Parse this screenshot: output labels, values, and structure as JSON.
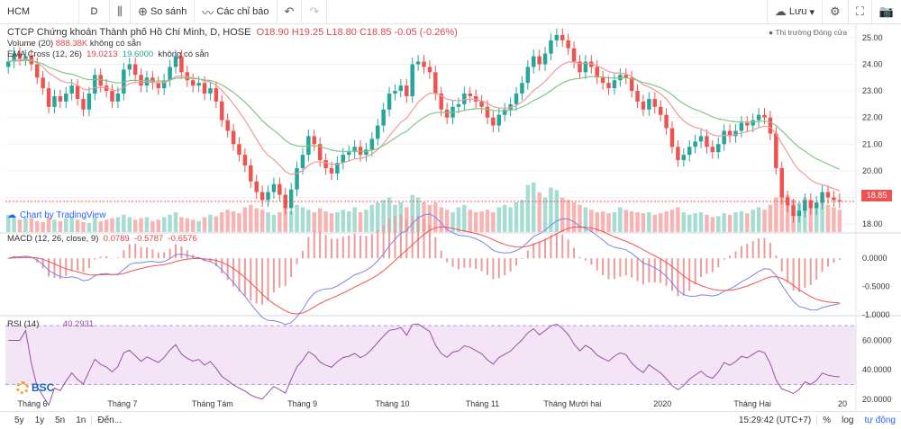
{
  "toolbar": {
    "symbol": "HCM",
    "interval": "D",
    "compare_label": "So sánh",
    "indicators_label": "Các chỉ báo",
    "save_label": "Lưu"
  },
  "chart_info": {
    "title": "CTCP Chứng khoán Thành phố Hồ Chí Minh, D, HOSE",
    "ohlc": "O18.90  H19.25  L18.80  C18.85  -0.05 (-0.26%)",
    "volume_label": "Volume (20)",
    "volume_value": "888.38K",
    "volume_na": "không có sẵn",
    "ema_label": "EMA Cross (12, 26)",
    "ema_v1": "19.0213",
    "ema_v2": "19.6000",
    "ema_na": "không có sẵn",
    "market_closed": "Thị trường Đóng cửa",
    "last_price": "18.85",
    "tv_badge": "Chart by TradingView",
    "macd_label": "MACD (12, 26, close, 9)",
    "macd_v1": "0.0789",
    "macd_v2": "-0.5787",
    "macd_v3": "-0.6576",
    "rsi_label": "RSI (14)",
    "rsi_value": "40.2931",
    "logo_text": "BSC"
  },
  "bottombar": {
    "ranges": [
      "5y",
      "1y",
      "5n",
      "1n",
      "Đến..."
    ],
    "time": "15:29:42 (UTC+7)",
    "percent": "%",
    "log": "log",
    "auto": "tự động"
  },
  "colors": {
    "up": "#26a69a",
    "down": "#ef5350",
    "ema_fast": "#ef9a9a",
    "ema_slow": "#81c784",
    "macd": "#7b83eb",
    "signal": "#ef5350",
    "rsi": "#9c4dab",
    "rsi_band": "#f3e5f5"
  },
  "chart_data": {
    "type": "candlestick",
    "x_labels": [
      "Tháng 6",
      "Tháng 7",
      "Tháng Tám",
      "Tháng 9",
      "Tháng 10",
      "Tháng 11",
      "Tháng Mười hai",
      "2020",
      "Tháng Hai",
      "20"
    ],
    "price_axis": [
      "25.00",
      "24.00",
      "23.00",
      "22.00",
      "21.00",
      "20.00",
      "19.00",
      "18.00"
    ],
    "price_range": [
      17.7,
      25.4
    ],
    "macd_axis": [
      "0.0000",
      "-0.5000",
      "-1.0000"
    ],
    "macd_range": [
      -1.0,
      0.4
    ],
    "rsi_axis": [
      "60.0000",
      "40.0000",
      "20.0000"
    ],
    "rsi_range": [
      15,
      75
    ],
    "rsi_bands": [
      70,
      30
    ],
    "close": [
      24.1,
      24.4,
      24.2,
      24.3,
      24.0,
      23.5,
      23.1,
      22.4,
      22.8,
      22.6,
      22.9,
      23.2,
      22.7,
      22.3,
      22.9,
      23.6,
      23.2,
      23.0,
      22.6,
      22.9,
      23.8,
      24.0,
      23.6,
      23.2,
      23.5,
      23.3,
      23.1,
      23.4,
      23.9,
      24.3,
      23.7,
      23.4,
      23.2,
      23.3,
      22.9,
      23.1,
      22.6,
      21.9,
      21.5,
      21.0,
      20.6,
      20.2,
      19.6,
      19.2,
      18.9,
      19.2,
      19.5,
      19.1,
      18.6,
      19.3,
      20.1,
      20.6,
      21.3,
      21.0,
      20.4,
      20.1,
      19.9,
      20.3,
      20.6,
      20.7,
      20.9,
      20.6,
      20.8,
      21.2,
      21.7,
      22.3,
      22.9,
      23.0,
      23.2,
      22.8,
      24.0,
      24.1,
      23.9,
      23.7,
      22.9,
      22.3,
      22.0,
      22.4,
      22.5,
      22.9,
      22.8,
      22.6,
      22.4,
      22.0,
      21.7,
      22.1,
      22.3,
      22.5,
      22.9,
      23.3,
      23.9,
      24.3,
      24.0,
      24.4,
      24.9,
      25.1,
      24.9,
      24.6,
      24.1,
      23.7,
      24.1,
      23.9,
      23.5,
      23.3,
      23.1,
      23.4,
      23.6,
      23.5,
      23.0,
      22.6,
      22.3,
      22.7,
      22.4,
      22.1,
      21.6,
      20.9,
      20.4,
      20.6,
      20.9,
      21.1,
      21.3,
      20.9,
      20.7,
      21.0,
      21.5,
      21.3,
      21.5,
      21.8,
      21.7,
      21.9,
      22.1,
      22.0,
      21.4,
      20.1,
      19.0,
      18.7,
      18.3,
      18.5,
      18.9,
      18.6,
      18.8,
      19.2,
      19.0,
      18.9,
      18.85
    ],
    "volume": [
      0.35,
      0.3,
      0.25,
      0.3,
      0.28,
      0.22,
      0.2,
      0.3,
      0.25,
      0.22,
      0.28,
      0.3,
      0.25,
      0.2,
      0.18,
      0.3,
      0.22,
      0.25,
      0.28,
      0.3,
      0.35,
      0.3,
      0.25,
      0.28,
      0.3,
      0.22,
      0.25,
      0.3,
      0.35,
      0.4,
      0.3,
      0.28,
      0.25,
      0.22,
      0.3,
      0.35,
      0.32,
      0.4,
      0.45,
      0.42,
      0.38,
      0.5,
      0.55,
      0.48,
      0.45,
      0.4,
      0.35,
      0.4,
      0.5,
      0.42,
      0.55,
      0.5,
      0.45,
      0.4,
      0.48,
      0.42,
      0.38,
      0.4,
      0.45,
      0.42,
      0.5,
      0.4,
      0.45,
      0.55,
      0.6,
      0.65,
      0.7,
      0.55,
      0.6,
      0.5,
      0.75,
      0.7,
      0.6,
      0.55,
      0.6,
      0.5,
      0.45,
      0.4,
      0.5,
      0.55,
      0.45,
      0.4,
      0.42,
      0.45,
      0.4,
      0.5,
      0.55,
      0.5,
      0.6,
      0.65,
      0.95,
      1.0,
      0.8,
      0.7,
      0.9,
      0.85,
      0.7,
      0.65,
      0.6,
      0.55,
      0.5,
      0.45,
      0.4,
      0.42,
      0.38,
      0.4,
      0.5,
      0.45,
      0.42,
      0.4,
      0.38,
      0.4,
      0.35,
      0.38,
      0.42,
      0.45,
      0.5,
      0.4,
      0.35,
      0.38,
      0.4,
      0.35,
      0.3,
      0.32,
      0.38,
      0.35,
      0.4,
      0.42,
      0.38,
      0.45,
      0.5,
      0.45,
      0.55,
      0.7,
      0.95,
      0.75,
      0.65,
      0.6,
      0.7,
      0.55,
      0.6,
      0.65,
      0.55,
      0.5,
      0.45
    ]
  }
}
